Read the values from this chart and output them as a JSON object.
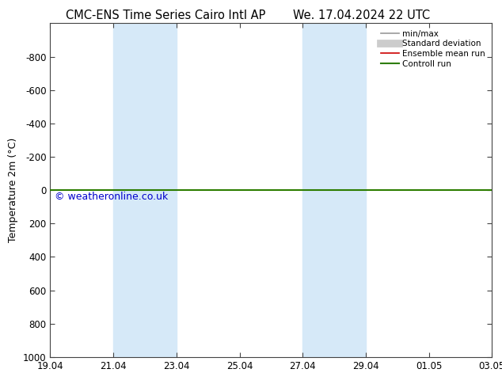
{
  "title_left": "CMC-ENS Time Series Cairo Intl AP",
  "title_right": "We. 17.04.2024 22 UTC",
  "ylabel": "Temperature 2m (°C)",
  "ylim_top": -1000,
  "ylim_bottom": 1000,
  "yticks": [
    -800,
    -600,
    -400,
    -200,
    0,
    200,
    400,
    600,
    800,
    1000
  ],
  "xtick_labels": [
    "19.04",
    "21.04",
    "23.04",
    "25.04",
    "27.04",
    "29.04",
    "01.05",
    "03.05"
  ],
  "xtick_positions": [
    0,
    2,
    4,
    6,
    8,
    10,
    12,
    14
  ],
  "shaded_bands": [
    {
      "x_start": 2,
      "x_end": 4
    },
    {
      "x_start": 8,
      "x_end": 10
    }
  ],
  "band_color": "#d6e9f8",
  "green_line_y": 0,
  "green_line_color": "#2d7d00",
  "watermark": "© weatheronline.co.uk",
  "watermark_color": "#0000cc",
  "legend_items": [
    {
      "label": "min/max",
      "color": "#999999",
      "lw": 1.2
    },
    {
      "label": "Standard deviation",
      "color": "#cccccc",
      "lw": 7
    },
    {
      "label": "Ensemble mean run",
      "color": "#cc0000",
      "lw": 1.2
    },
    {
      "label": "Controll run",
      "color": "#2d7d00",
      "lw": 1.5
    }
  ],
  "background_color": "#ffffff",
  "title_fontsize": 10.5,
  "axis_label_fontsize": 9,
  "tick_fontsize": 8.5,
  "legend_fontsize": 7.5,
  "watermark_fontsize": 9
}
